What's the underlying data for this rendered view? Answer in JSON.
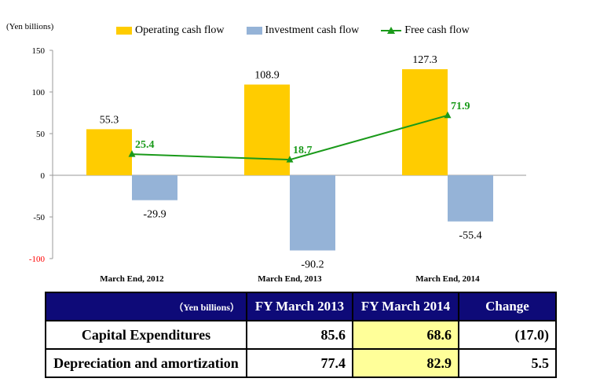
{
  "chart_data": {
    "type": "bar",
    "unit_label": "(Yen billions)",
    "categories": [
      "March End,  2012",
      "March End, 2013",
      "March End, 2014"
    ],
    "series": [
      {
        "name": "Operating cash flow",
        "type": "bar",
        "color": "#ffcc00",
        "values": [
          55.3,
          108.9,
          127.3
        ],
        "labels": [
          "55.3",
          "108.9",
          "127.3"
        ]
      },
      {
        "name": "Investment cash flow",
        "type": "bar",
        "color": "#95b3d7",
        "values": [
          -29.9,
          -90.2,
          -55.4
        ],
        "labels": [
          "-29.9",
          "-90.2",
          "-55.4"
        ]
      },
      {
        "name": "Free cash flow",
        "type": "line",
        "color": "#1a9a1a",
        "values": [
          25.4,
          18.7,
          71.9
        ],
        "labels": [
          "25.4",
          "18.7",
          "71.9"
        ]
      }
    ],
    "ylim": [
      -100,
      150
    ],
    "yticks": [
      150,
      100,
      50,
      0,
      -50,
      -100
    ],
    "ytick_labels": [
      "150",
      "100",
      "50",
      "0",
      "-50",
      "-100"
    ],
    "negative_tick_color": "#ff0000",
    "legend_position": "top",
    "grid": false
  },
  "table": {
    "unit_header": "（Yen billions）",
    "headers": [
      "FY March 2013",
      "FY March 2014",
      "Change"
    ],
    "rows": [
      {
        "label": "Capital Expenditures",
        "values": [
          "85.6",
          "68.6",
          "(17.0)"
        ]
      },
      {
        "label": "Depreciation and amortization",
        "values": [
          "77.4",
          "82.9",
          "5.5"
        ]
      }
    ],
    "highlight_color": "#ffff99",
    "header_color": "#0e0a78"
  }
}
